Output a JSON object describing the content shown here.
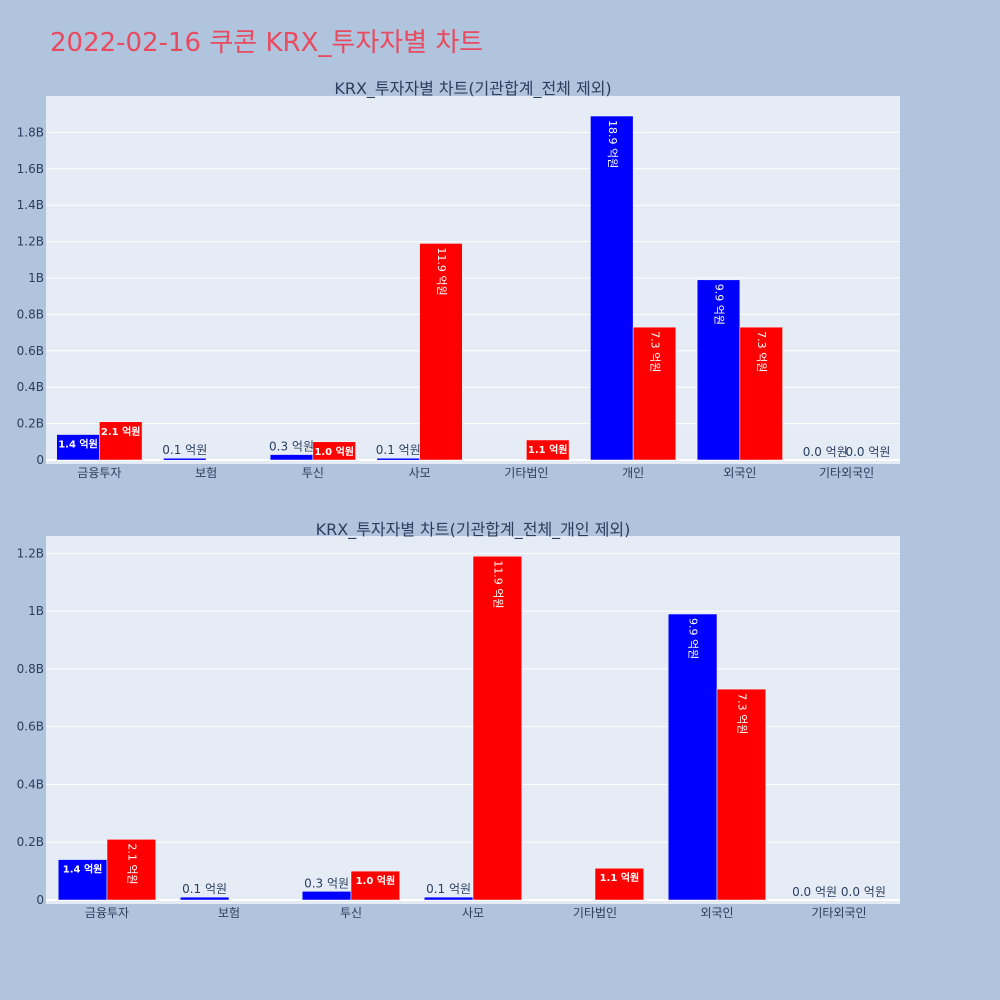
{
  "page_title": "2022-02-16 쿠콘 KRX_투자자별 차트",
  "colors": {
    "series_a": "#0000ff",
    "series_b": "#ff0000",
    "title": "#e84a5f",
    "plot_bg": "#e5ecf6",
    "page_bg": "#b0c4de"
  },
  "chart_data": [
    {
      "type": "bar",
      "title": "KRX_투자자별 차트(기관합계_전체 제외)",
      "categories": [
        "금융투자",
        "보험",
        "투신",
        "사모",
        "기타법인",
        "개인",
        "외국인",
        "기타외국인"
      ],
      "series": [
        {
          "values": [
            140000000,
            10000000,
            30000000,
            10000000,
            0,
            1890000000,
            990000000,
            0
          ],
          "labels": [
            "1.4 억원",
            "0.1 억원",
            "0.3 억원",
            "0.1 억원",
            "",
            "18.9 억원",
            "9.9 억원",
            "0.0 억원"
          ]
        },
        {
          "values": [
            210000000,
            0,
            100000000,
            1190000000,
            110000000,
            730000000,
            730000000,
            0
          ],
          "labels": [
            "2.1 억원",
            "",
            "1.0 억원",
            "11.9 억원",
            "1.1 억원",
            "7.3 억원",
            "7.3 억원",
            "0.0 억원"
          ]
        }
      ],
      "yticks": [
        "0",
        "0.2B",
        "0.4B",
        "0.6B",
        "0.8B",
        "1B",
        "1.2B",
        "1.4B",
        "1.6B",
        "1.8B"
      ],
      "ylim": [
        0,
        2000000000
      ],
      "grid": true,
      "legend": "none"
    },
    {
      "type": "bar",
      "title": "KRX_투자자별 차트(기관합계_전체_개인 제외)",
      "categories": [
        "금융투자",
        "보험",
        "투신",
        "사모",
        "기타법인",
        "외국인",
        "기타외국인"
      ],
      "series": [
        {
          "values": [
            140000000,
            10000000,
            30000000,
            10000000,
            0,
            990000000,
            0
          ],
          "labels": [
            "1.4 억원",
            "0.1 억원",
            "0.3 억원",
            "0.1 억원",
            "",
            "9.9 억원",
            "0.0 억원"
          ]
        },
        {
          "values": [
            210000000,
            0,
            100000000,
            1190000000,
            110000000,
            730000000,
            0
          ],
          "labels": [
            "2.1 억원",
            "",
            "1.0 억원",
            "11.9 억원",
            "1.1 억원",
            "7.3 억원",
            "0.0 억원"
          ]
        }
      ],
      "yticks": [
        "0",
        "0.2B",
        "0.4B",
        "0.6B",
        "0.8B",
        "1B",
        "1.2B"
      ],
      "ylim": [
        0,
        1260000000
      ],
      "grid": true,
      "legend": "none"
    }
  ]
}
